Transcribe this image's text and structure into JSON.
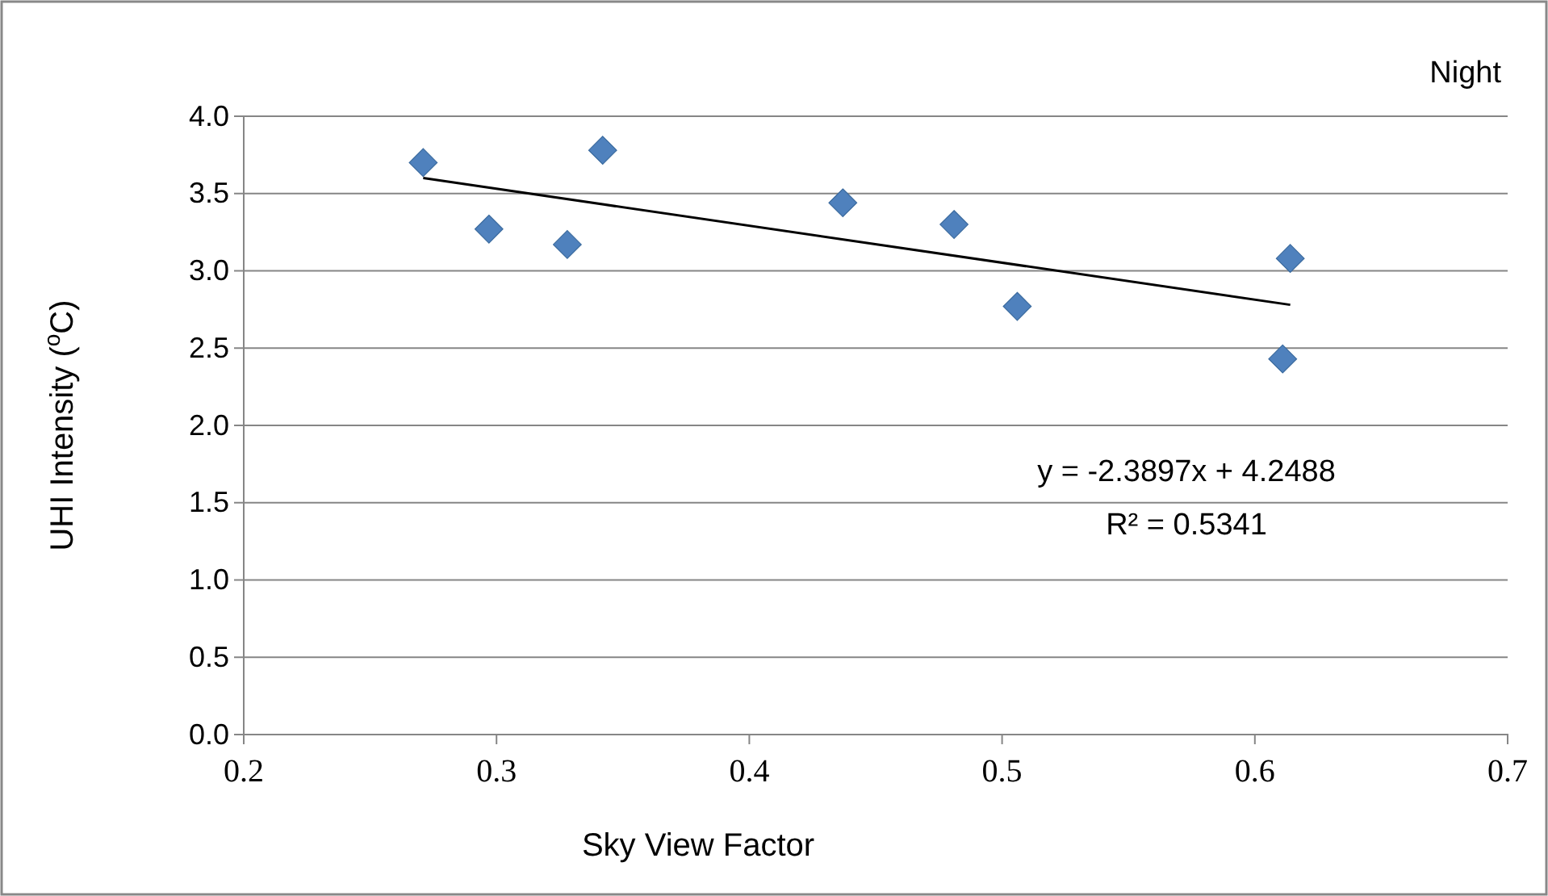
{
  "chart_data": {
    "type": "scatter",
    "xlabel": "Sky View Factor",
    "ylabel": "UHI Intensity ($^{o}$C)",
    "xlim": [
      0.2,
      0.7
    ],
    "xticks": [
      0.2,
      0.3,
      0.4,
      0.5,
      0.6,
      0.7
    ],
    "ylim": [
      0,
      4
    ],
    "yticks": [
      {
        "value": 0,
        "label": "0.0"
      },
      {
        "value": 0.5,
        "label": "0.5"
      },
      {
        "value": 1,
        "label": "1.0"
      },
      {
        "value": 1.5,
        "label": "1.5"
      },
      {
        "value": 2,
        "label": "2.0"
      },
      {
        "value": 2.5,
        "label": "2.5"
      },
      {
        "value": 3,
        "label": "3.0"
      },
      {
        "value": 3.5,
        "label": "3.5"
      },
      {
        "value": 4,
        "label": "4.0"
      }
    ],
    "grid": "y",
    "series": [
      {
        "color": "#4f81bd",
        "marker": "diamond",
        "x": [
          0.271,
          0.297,
          0.328,
          0.342,
          0.437,
          0.481,
          0.506,
          0.614,
          0.611
        ],
        "values": [
          3.7,
          3.27,
          3.17,
          3.78,
          3.44,
          3.3,
          2.77,
          3.08,
          2.43
        ]
      },
      {
        "type": "line",
        "color": "#000000",
        "marker": "none",
        "x": [
          0.271,
          0.614
        ],
        "values": [
          3.6,
          2.78
        ]
      }
    ],
    "annotations": [
      "Night",
      "y = -2.3897x + 4.2488",
      "R² = 0.5341"
    ]
  }
}
